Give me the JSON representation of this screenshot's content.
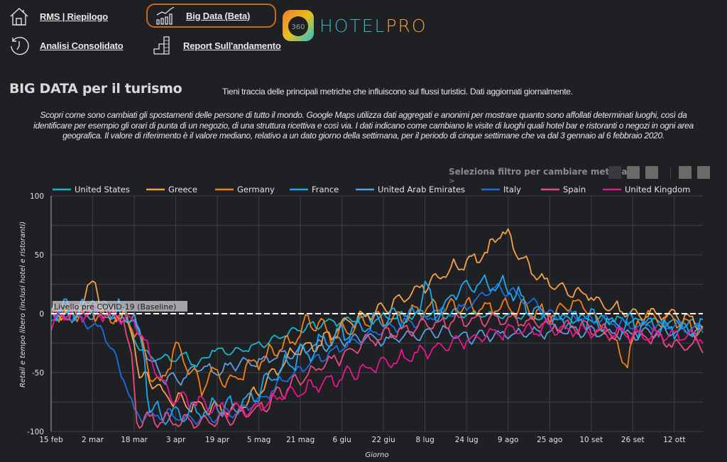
{
  "nav": {
    "rms": {
      "label": "RMS | Riepilogo",
      "icon": "home-icon"
    },
    "analisi": {
      "label": "Analisi Consolidato",
      "icon": "history-clock-icon"
    },
    "bigdata": {
      "label": "Big Data (Beta)",
      "icon": "bar-chart-trend-icon",
      "active": true
    },
    "report": {
      "label": "Report Sull'andamento",
      "icon": "stairs-chart-icon"
    }
  },
  "logo": {
    "badge": "360",
    "word1": "HOTEL",
    "word2": "PRO",
    "colors": {
      "hotel": "#3bb3c4",
      "pro": "#f2a23a"
    }
  },
  "page": {
    "title": "BIG DATA per il turismo",
    "subtitle": "Tieni traccia delle principali metriche che influiscono sul flussi turistici. Dati aggiornati giornalmente.",
    "description": "Scopri come sono cambiati gli spostamenti delle persone di tutto il mondo. Google Maps utilizza dati aggregati e anonimi per mostrare quanto sono affollati determinati luoghi, così da identificare per esempio gli orari di punta di un negozio, di una struttura ricettiva e così via. I dati indicano come cambiano le visite di luoghi quali hotel bar e ristoranti o negozi in ogni area  geografica. Il valore di riferimento è il valore mediano, relativo  a un dato giorno della settimana, per il periodo di  cinque settimane che va dal 3 gennaio al 6 febbraio 2020."
  },
  "filter": {
    "label": "Seleziona filtro per cambiare metrica",
    "caret": ">",
    "buttons": [
      {
        "name": "filter-1",
        "active": true
      },
      {
        "name": "filter-2",
        "active": false
      },
      {
        "name": "filter-3",
        "active": false
      },
      {
        "name": "filter-4",
        "active": false
      },
      {
        "name": "filter-5",
        "active": false
      }
    ]
  },
  "chart_data": {
    "type": "line",
    "title": "",
    "xlabel": "Giorno",
    "ylabel": "Retail e tempo libero (inclusi hotel e ristoranti)",
    "ylim": [
      -100,
      100
    ],
    "yticks": [
      100,
      50,
      0,
      -50,
      -100
    ],
    "xlim_days": [
      0,
      251
    ],
    "x_start": "15 feb 2020",
    "xticks": [
      {
        "day": 0,
        "label": "15 feb"
      },
      {
        "day": 16,
        "label": "2 mar"
      },
      {
        "day": 32,
        "label": "18 mar"
      },
      {
        "day": 48,
        "label": "3 apr"
      },
      {
        "day": 64,
        "label": "19 apr"
      },
      {
        "day": 80,
        "label": "5 mag"
      },
      {
        "day": 96,
        "label": "21 mag"
      },
      {
        "day": 112,
        "label": "6 giu"
      },
      {
        "day": 128,
        "label": "22 giu"
      },
      {
        "day": 144,
        "label": "8 lug"
      },
      {
        "day": 160,
        "label": "24 lug"
      },
      {
        "day": 176,
        "label": "9 ago"
      },
      {
        "day": 192,
        "label": "25 ago"
      },
      {
        "day": 208,
        "label": "10 set"
      },
      {
        "day": 224,
        "label": "26 set"
      },
      {
        "day": 240,
        "label": "12 ott"
      }
    ],
    "grid": true,
    "legend_position": "top",
    "annotation": {
      "y": 0,
      "label": "Livello pre COVID-19 (Baseline)",
      "style": "dashed-white"
    },
    "series_note": "approximate keypoints [day, value]; daily values vary weekly around these",
    "series": [
      {
        "name": "United States",
        "color": "#17b6c8",
        "ripple": 3,
        "points": [
          [
            0,
            2
          ],
          [
            10,
            3
          ],
          [
            18,
            8
          ],
          [
            24,
            2
          ],
          [
            28,
            -5
          ],
          [
            32,
            -20
          ],
          [
            36,
            -35
          ],
          [
            40,
            -38
          ],
          [
            46,
            -38
          ],
          [
            52,
            -35
          ],
          [
            56,
            -45
          ],
          [
            62,
            -30
          ],
          [
            70,
            -32
          ],
          [
            80,
            -26
          ],
          [
            90,
            -18
          ],
          [
            100,
            -10
          ],
          [
            112,
            -6
          ],
          [
            124,
            -4
          ],
          [
            136,
            -2
          ],
          [
            144,
            0
          ],
          [
            160,
            0
          ],
          [
            176,
            -2
          ],
          [
            192,
            -3
          ],
          [
            208,
            -5
          ],
          [
            224,
            -6
          ],
          [
            240,
            -8
          ],
          [
            251,
            -10
          ]
        ]
      },
      {
        "name": "Greece",
        "color": "#f5a04a",
        "ripple": 5,
        "points": [
          [
            0,
            0
          ],
          [
            10,
            2
          ],
          [
            17,
            30
          ],
          [
            19,
            5
          ],
          [
            28,
            -3
          ],
          [
            32,
            -20
          ],
          [
            34,
            -55
          ],
          [
            38,
            -55
          ],
          [
            44,
            -70
          ],
          [
            50,
            -75
          ],
          [
            60,
            -80
          ],
          [
            70,
            -82
          ],
          [
            78,
            -70
          ],
          [
            84,
            -55
          ],
          [
            90,
            -40
          ],
          [
            96,
            -30
          ],
          [
            104,
            -25
          ],
          [
            112,
            -10
          ],
          [
            124,
            0
          ],
          [
            136,
            15
          ],
          [
            144,
            25
          ],
          [
            152,
            35
          ],
          [
            160,
            45
          ],
          [
            168,
            50
          ],
          [
            172,
            70
          ],
          [
            176,
            65
          ],
          [
            182,
            45
          ],
          [
            188,
            30
          ],
          [
            196,
            20
          ],
          [
            208,
            15
          ],
          [
            216,
            5
          ],
          [
            224,
            -2
          ],
          [
            232,
            0
          ],
          [
            240,
            -2
          ],
          [
            251,
            -8
          ]
        ]
      },
      {
        "name": "Germany",
        "color": "#f57f17",
        "ripple": 6,
        "points": [
          [
            0,
            0
          ],
          [
            14,
            0
          ],
          [
            24,
            -2
          ],
          [
            30,
            -4
          ],
          [
            34,
            -20
          ],
          [
            38,
            -50
          ],
          [
            42,
            -60
          ],
          [
            48,
            -30
          ],
          [
            52,
            -40
          ],
          [
            58,
            -65
          ],
          [
            62,
            -50
          ],
          [
            70,
            -60
          ],
          [
            76,
            -45
          ],
          [
            84,
            -35
          ],
          [
            92,
            -25
          ],
          [
            100,
            -5
          ],
          [
            108,
            -20
          ],
          [
            116,
            -10
          ],
          [
            124,
            -5
          ],
          [
            136,
            -2
          ],
          [
            144,
            5
          ],
          [
            160,
            5
          ],
          [
            176,
            5
          ],
          [
            192,
            0
          ],
          [
            204,
            10
          ],
          [
            210,
            -5
          ],
          [
            220,
            -35
          ],
          [
            222,
            -45
          ],
          [
            226,
            -5
          ],
          [
            240,
            -5
          ],
          [
            251,
            -15
          ]
        ]
      },
      {
        "name": "France",
        "color": "#1ea8f0",
        "ripple": 7,
        "points": [
          [
            0,
            2
          ],
          [
            10,
            5
          ],
          [
            18,
            8
          ],
          [
            26,
            3
          ],
          [
            32,
            -5
          ],
          [
            36,
            -40
          ],
          [
            38,
            -80
          ],
          [
            44,
            -85
          ],
          [
            52,
            -85
          ],
          [
            60,
            -82
          ],
          [
            68,
            -80
          ],
          [
            76,
            -75
          ],
          [
            82,
            -60
          ],
          [
            90,
            -45
          ],
          [
            100,
            -30
          ],
          [
            110,
            -18
          ],
          [
            120,
            -10
          ],
          [
            132,
            -5
          ],
          [
            140,
            -5
          ],
          [
            144,
            25
          ],
          [
            148,
            -5
          ],
          [
            156,
            20
          ],
          [
            164,
            25
          ],
          [
            170,
            25
          ],
          [
            178,
            20
          ],
          [
            184,
            5
          ],
          [
            192,
            -5
          ],
          [
            208,
            -5
          ],
          [
            224,
            -10
          ],
          [
            240,
            -12
          ],
          [
            251,
            -12
          ]
        ]
      },
      {
        "name": "United Arab Emirates",
        "color": "#5b9ee0",
        "ripple": 4,
        "points": [
          [
            0,
            -3
          ],
          [
            14,
            0
          ],
          [
            26,
            -2
          ],
          [
            32,
            -5
          ],
          [
            38,
            -40
          ],
          [
            44,
            -55
          ],
          [
            50,
            -55
          ],
          [
            56,
            -45
          ],
          [
            64,
            -50
          ],
          [
            72,
            -42
          ],
          [
            80,
            -40
          ],
          [
            90,
            -35
          ],
          [
            100,
            -28
          ],
          [
            110,
            -25
          ],
          [
            120,
            -20
          ],
          [
            130,
            -22
          ],
          [
            140,
            -18
          ],
          [
            152,
            -15
          ],
          [
            160,
            -20
          ],
          [
            176,
            -18
          ],
          [
            192,
            -15
          ],
          [
            208,
            -15
          ],
          [
            224,
            -18
          ],
          [
            240,
            -15
          ],
          [
            251,
            -14
          ]
        ]
      },
      {
        "name": "Italy",
        "color": "#1a6fe0",
        "ripple": 4,
        "points": [
          [
            0,
            0
          ],
          [
            10,
            -5
          ],
          [
            16,
            -10
          ],
          [
            20,
            -15
          ],
          [
            24,
            -35
          ],
          [
            28,
            -55
          ],
          [
            32,
            -85
          ],
          [
            36,
            -88
          ],
          [
            44,
            -85
          ],
          [
            52,
            -90
          ],
          [
            60,
            -88
          ],
          [
            70,
            -85
          ],
          [
            80,
            -75
          ],
          [
            90,
            -55
          ],
          [
            100,
            -42
          ],
          [
            110,
            -30
          ],
          [
            120,
            -20
          ],
          [
            132,
            -10
          ],
          [
            144,
            -5
          ],
          [
            160,
            5
          ],
          [
            168,
            20
          ],
          [
            176,
            20
          ],
          [
            184,
            10
          ],
          [
            192,
            0
          ],
          [
            208,
            -5
          ],
          [
            224,
            -10
          ],
          [
            240,
            -10
          ],
          [
            251,
            -15
          ]
        ]
      },
      {
        "name": "Spain",
        "color": "#e84a7a",
        "ripple": 5,
        "points": [
          [
            0,
            0
          ],
          [
            12,
            2
          ],
          [
            24,
            0
          ],
          [
            28,
            -5
          ],
          [
            31,
            -40
          ],
          [
            33,
            -90
          ],
          [
            40,
            -90
          ],
          [
            50,
            -92
          ],
          [
            60,
            -92
          ],
          [
            70,
            -88
          ],
          [
            80,
            -80
          ],
          [
            90,
            -65
          ],
          [
            100,
            -50
          ],
          [
            110,
            -38
          ],
          [
            120,
            -25
          ],
          [
            132,
            -15
          ],
          [
            144,
            -10
          ],
          [
            160,
            -5
          ],
          [
            176,
            -5
          ],
          [
            192,
            -8
          ],
          [
            208,
            -12
          ],
          [
            224,
            -18
          ],
          [
            236,
            -22
          ],
          [
            240,
            -28
          ],
          [
            251,
            -28
          ]
        ]
      },
      {
        "name": "United Kingdom",
        "color": "#e8158c",
        "ripple": 5,
        "points": [
          [
            0,
            -12
          ],
          [
            4,
            0
          ],
          [
            14,
            0
          ],
          [
            24,
            -2
          ],
          [
            32,
            -5
          ],
          [
            38,
            -35
          ],
          [
            42,
            -55
          ],
          [
            48,
            -72
          ],
          [
            56,
            -75
          ],
          [
            64,
            -80
          ],
          [
            72,
            -82
          ],
          [
            80,
            -78
          ],
          [
            90,
            -70
          ],
          [
            100,
            -62
          ],
          [
            110,
            -55
          ],
          [
            120,
            -48
          ],
          [
            132,
            -40
          ],
          [
            140,
            -35
          ],
          [
            148,
            -30
          ],
          [
            156,
            -25
          ],
          [
            164,
            -20
          ],
          [
            176,
            -15
          ],
          [
            192,
            -12
          ],
          [
            208,
            -15
          ],
          [
            224,
            -18
          ],
          [
            240,
            -18
          ],
          [
            251,
            -20
          ]
        ]
      }
    ]
  }
}
